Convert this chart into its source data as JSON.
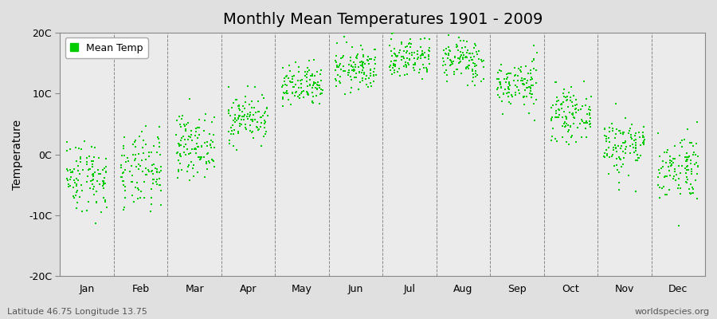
{
  "title": "Monthly Mean Temperatures 1901 - 2009",
  "ylabel": "Temperature",
  "ylim": [
    -20,
    20
  ],
  "yticks": [
    -20,
    -10,
    0,
    10,
    20
  ],
  "ytick_labels": [
    "-20C",
    "-10C",
    "0C",
    "10C",
    "20C"
  ],
  "months": [
    "Jan",
    "Feb",
    "Mar",
    "Apr",
    "May",
    "Jun",
    "Jul",
    "Aug",
    "Sep",
    "Oct",
    "Nov",
    "Dec"
  ],
  "dot_color": "#00CC00",
  "bg_color": "#E0E0E0",
  "plot_bg_color": "#EBEBEB",
  "footer_left": "Latitude 46.75 Longitude 13.75",
  "footer_right": "worldspecies.org",
  "legend_label": "Mean Temp",
  "n_years": 109,
  "monthly_means": [
    -3.5,
    -3.0,
    1.5,
    6.0,
    11.0,
    14.0,
    16.0,
    15.5,
    11.5,
    6.5,
    1.5,
    -2.0
  ],
  "monthly_stds": [
    3.0,
    3.2,
    2.5,
    2.0,
    1.8,
    1.8,
    1.8,
    1.8,
    2.0,
    2.0,
    2.5,
    2.8
  ],
  "title_fontsize": 14,
  "axis_fontsize": 10,
  "tick_fontsize": 9,
  "footer_fontsize": 8,
  "random_seed": 42,
  "dot_size": 4,
  "jitter": 0.38
}
